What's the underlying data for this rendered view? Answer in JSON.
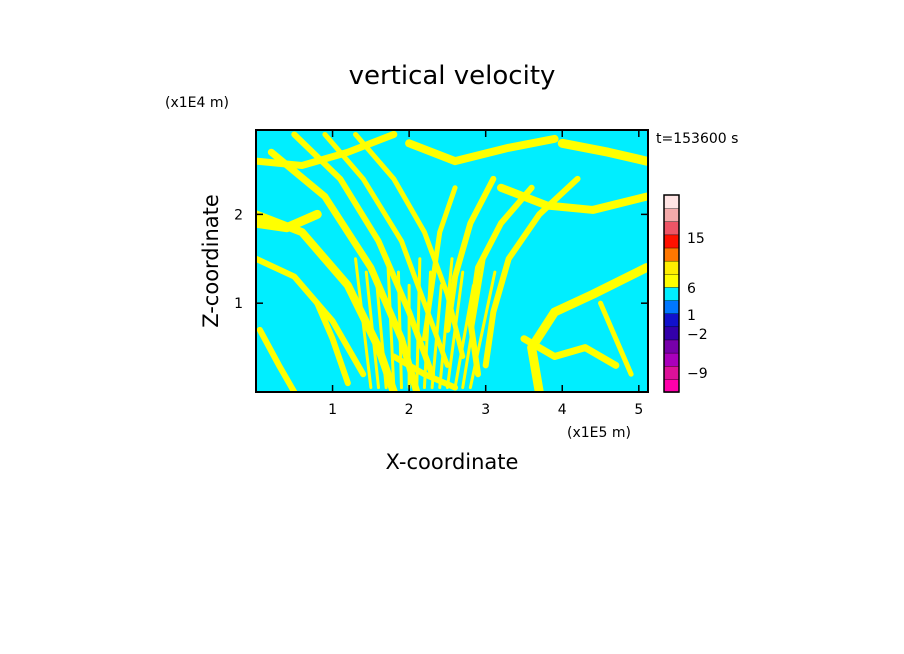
{
  "chart_data": {
    "type": "heatmap",
    "title": "vertical velocity",
    "xlabel": "X-coordinate",
    "ylabel": "Z-coordinate",
    "x_scale_label": "(x1E5 m)",
    "y_scale_label": "(x1E4 m)",
    "time_label": "t=153600 s",
    "xlim": [
      0,
      5.12
    ],
    "ylim": [
      0,
      2.95
    ],
    "x_ticks": [
      1,
      2,
      3,
      4,
      5
    ],
    "y_ticks": [
      1,
      2
    ],
    "x_tick_labels": [
      "1",
      "2",
      "3",
      "4",
      "5"
    ],
    "y_tick_labels": [
      "1",
      "2"
    ],
    "field_colors": {
      "negative": "#00eeff",
      "positive": "#ffff00"
    },
    "colorbar": {
      "segments": [
        "#ff00aa",
        "#dd1199",
        "#aa00bb",
        "#7700aa",
        "#3300aa",
        "#1111cc",
        "#0077ff",
        "#00eeff",
        "#ffff00",
        "#ffee00",
        "#ff7700",
        "#ff1100",
        "#ee5566",
        "#f4aaaa",
        "#ffe4e4"
      ],
      "tick_labels": [
        "15",
        "6",
        "1",
        "−2",
        "−9"
      ],
      "tick_values": [
        15,
        6,
        1,
        -2,
        -9
      ]
    }
  }
}
